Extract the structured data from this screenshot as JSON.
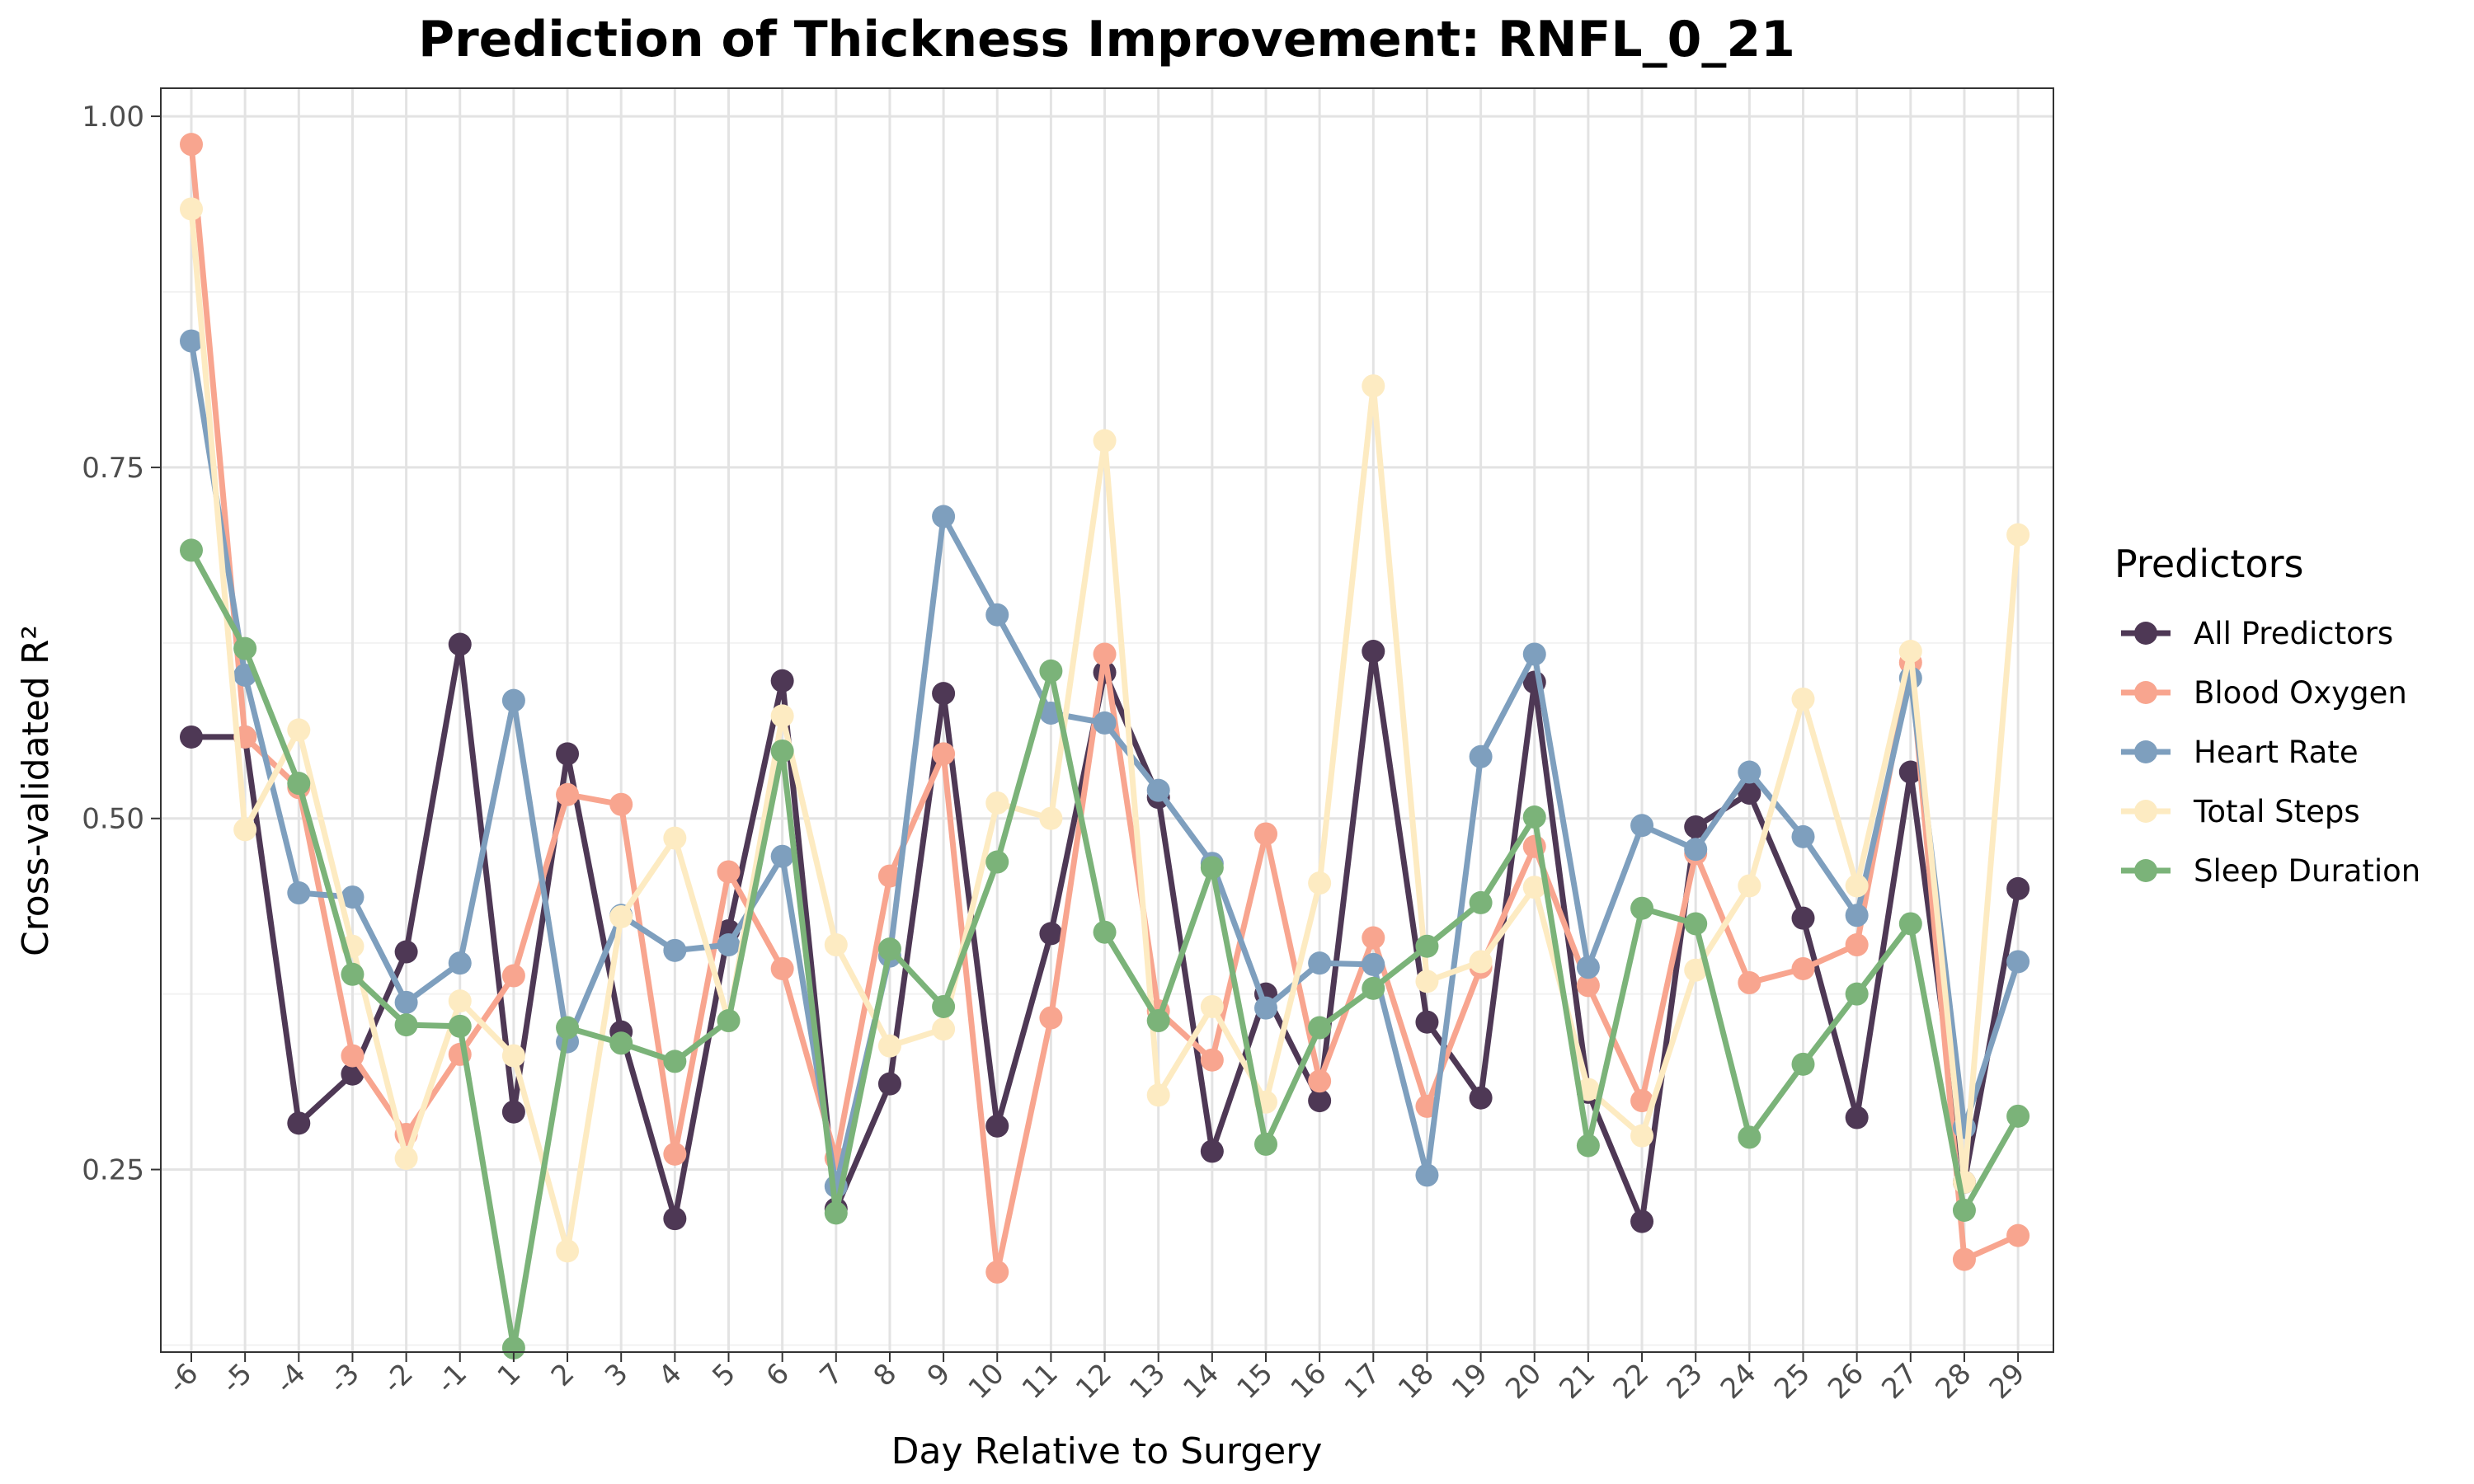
{
  "chart_data": {
    "type": "line",
    "title": "Prediction of Thickness Improvement: RNFL_0_21",
    "xlabel": "Day Relative to Surgery",
    "ylabel": "Cross-validated R²",
    "categories": [
      "-6",
      "-5",
      "-4",
      "-3",
      "-2",
      "-1",
      "1",
      "2",
      "3",
      "4",
      "5",
      "6",
      "7",
      "8",
      "9",
      "10",
      "11",
      "12",
      "13",
      "14",
      "15",
      "16",
      "17",
      "18",
      "19",
      "20",
      "21",
      "22",
      "23",
      "24",
      "25",
      "26",
      "27",
      "28",
      "29"
    ],
    "ylim": [
      0.12,
      1.02
    ],
    "yticks": [
      0.25,
      0.5,
      0.75,
      1.0
    ],
    "ytick_labels": [
      "0.25",
      "0.50",
      "0.75",
      "1.00"
    ],
    "grid": true,
    "legend": {
      "title": "Predictors",
      "position": "right"
    },
    "series": [
      {
        "name": "All Predictors",
        "color": "#4e3855",
        "values": [
          0.558,
          0.558,
          0.283,
          0.318,
          0.405,
          0.624,
          0.291,
          0.546,
          0.348,
          0.215,
          0.42,
          0.598,
          0.222,
          0.311,
          0.589,
          0.281,
          0.418,
          0.604,
          0.515,
          0.263,
          0.375,
          0.299,
          0.619,
          0.355,
          0.301,
          0.597,
          0.305,
          0.213,
          0.494,
          0.518,
          0.429,
          0.287,
          0.533,
          0.241,
          0.45
        ]
      },
      {
        "name": "Blood Oxygen",
        "color": "#f8a58f",
        "values": [
          0.98,
          0.558,
          0.522,
          0.331,
          0.275,
          0.332,
          0.388,
          0.517,
          0.51,
          0.261,
          0.462,
          0.393,
          0.258,
          0.459,
          0.546,
          0.177,
          0.358,
          0.617,
          0.363,
          0.328,
          0.489,
          0.313,
          0.415,
          0.295,
          0.394,
          0.48,
          0.381,
          0.299,
          0.475,
          0.383,
          0.393,
          0.41,
          0.611,
          0.186,
          0.203
        ]
      },
      {
        "name": "Heart Rate",
        "color": "#7e9fbe",
        "values": [
          0.84,
          0.602,
          0.447,
          0.444,
          0.369,
          0.397,
          0.584,
          0.341,
          0.431,
          0.406,
          0.41,
          0.473,
          0.238,
          0.402,
          0.715,
          0.645,
          0.575,
          0.568,
          0.52,
          0.468,
          0.365,
          0.397,
          0.396,
          0.246,
          0.544,
          0.617,
          0.394,
          0.495,
          0.478,
          0.533,
          0.487,
          0.431,
          0.6,
          0.28,
          0.398
        ]
      },
      {
        "name": "Total Steps",
        "color": "#fdebc2",
        "values": [
          0.934,
          0.492,
          0.563,
          0.409,
          0.258,
          0.37,
          0.331,
          0.192,
          0.43,
          0.486,
          0.356,
          0.573,
          0.41,
          0.338,
          0.35,
          0.511,
          0.5,
          0.769,
          0.303,
          0.366,
          0.298,
          0.454,
          0.808,
          0.384,
          0.398,
          0.451,
          0.307,
          0.274,
          0.392,
          0.452,
          0.585,
          0.452,
          0.619,
          0.241,
          0.702
        ]
      },
      {
        "name": "Sleep Duration",
        "color": "#7bb379",
        "values": [
          0.691,
          0.621,
          0.525,
          0.389,
          0.353,
          0.352,
          0.123,
          0.351,
          0.34,
          0.327,
          0.356,
          0.548,
          0.219,
          0.407,
          0.366,
          0.469,
          0.605,
          0.419,
          0.356,
          0.465,
          0.268,
          0.351,
          0.379,
          0.409,
          0.44,
          0.501,
          0.267,
          0.436,
          0.425,
          0.273,
          0.325,
          0.375,
          0.425,
          0.221,
          0.288
        ]
      }
    ]
  }
}
